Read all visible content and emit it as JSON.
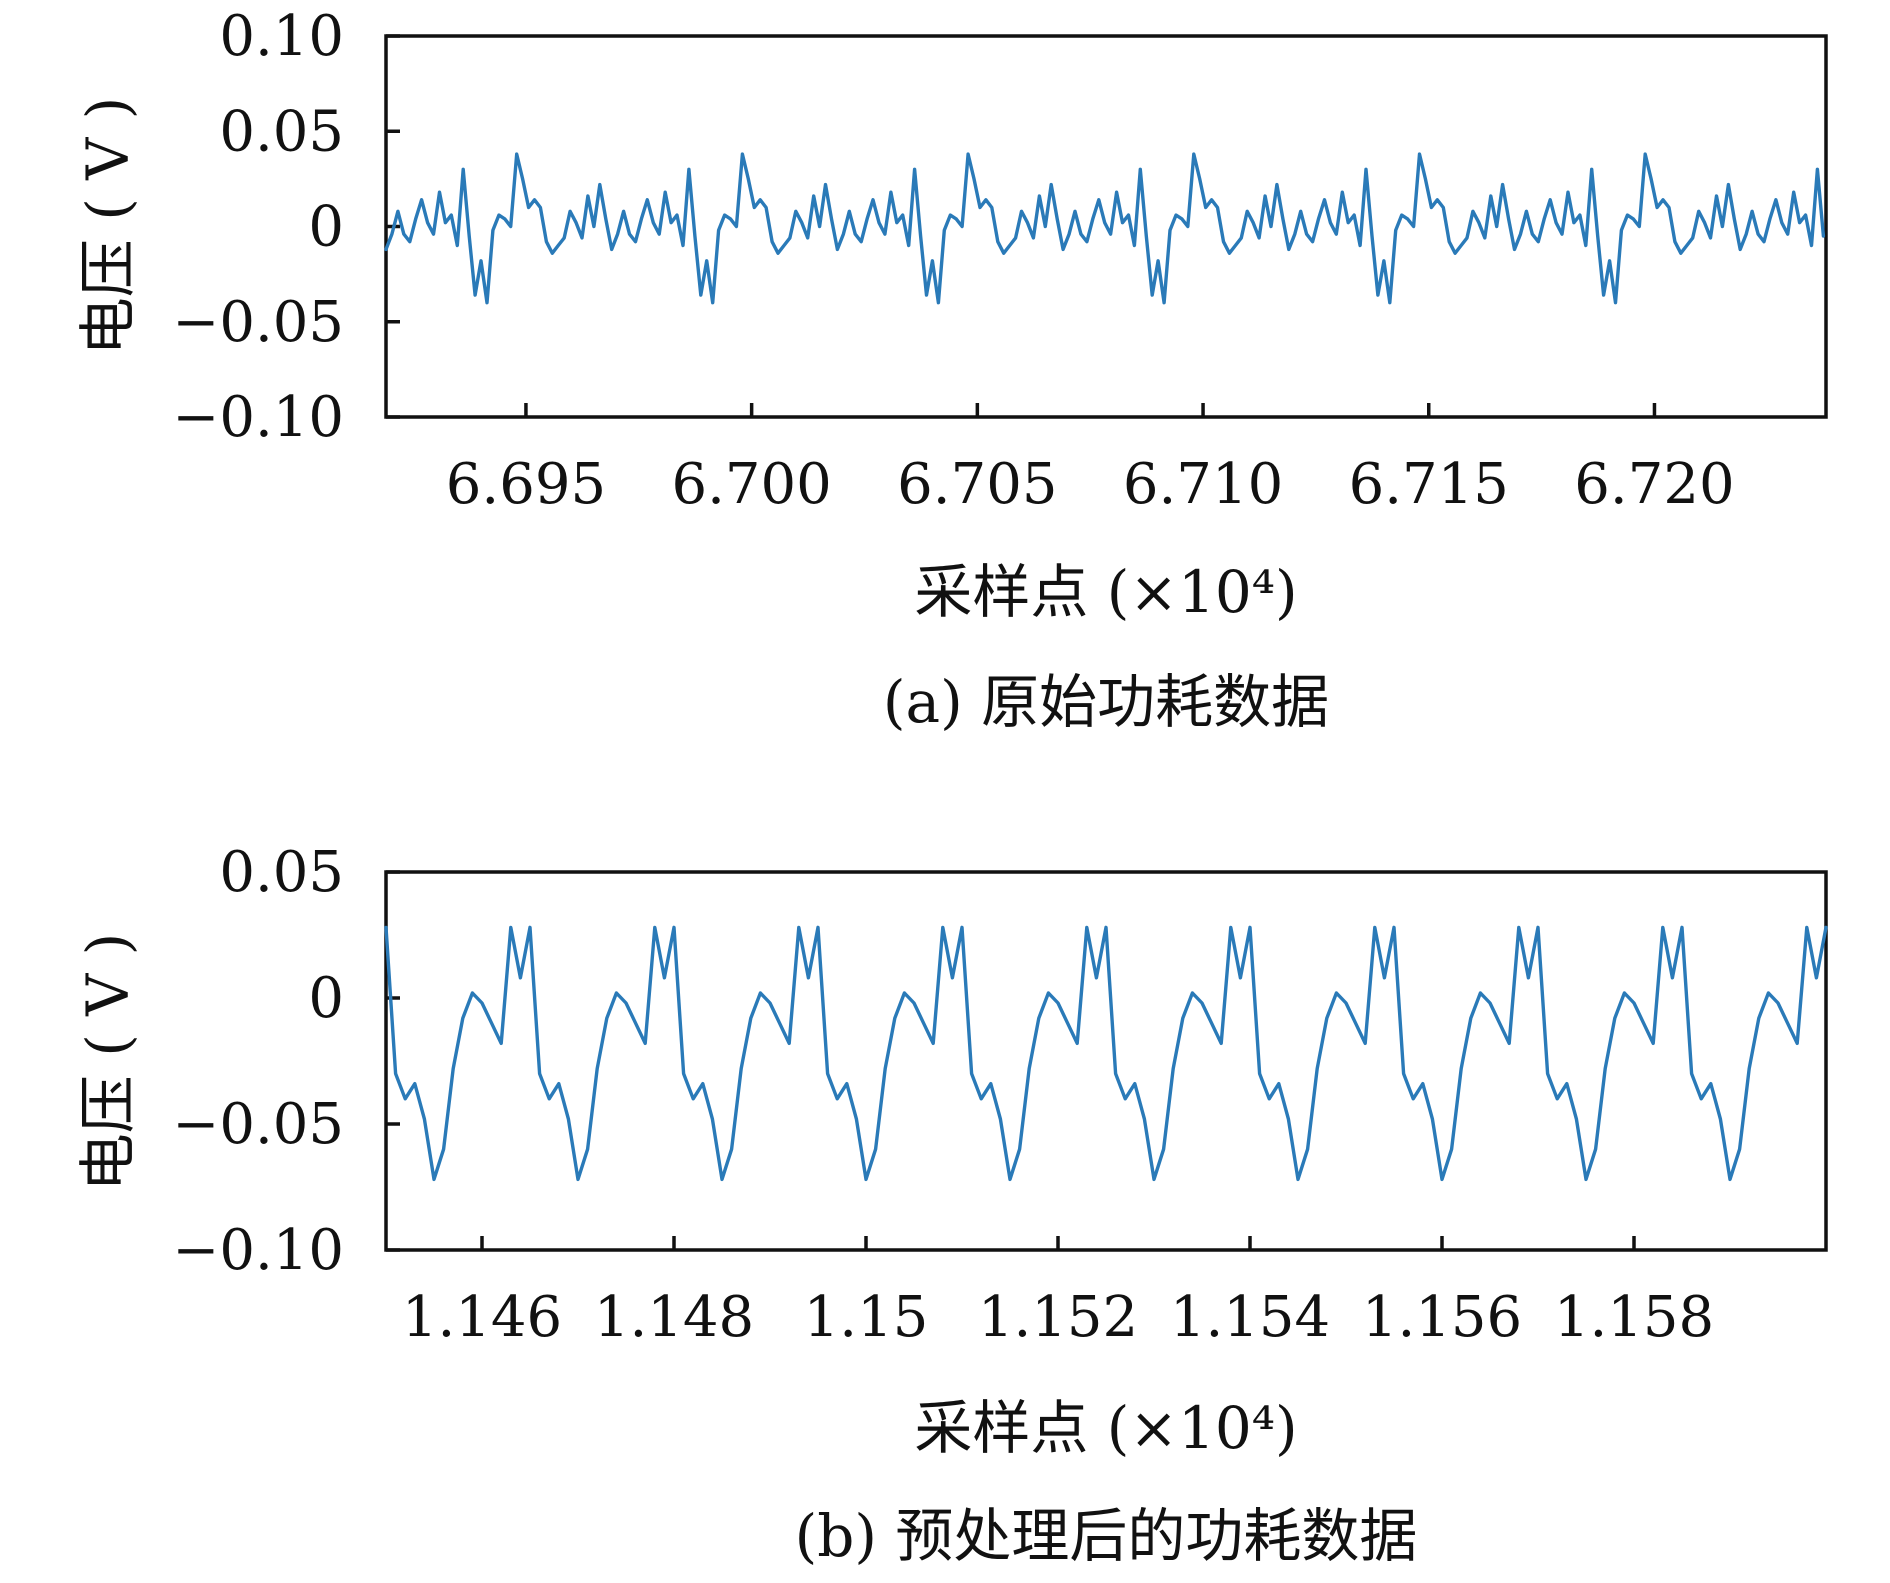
{
  "chart_data": [
    {
      "id": "a",
      "type": "line",
      "caption": "(a) 原始功耗数据",
      "xlabel": "采样点 (×10⁴)",
      "ylabel": "电压 ( V )",
      "xlim": [
        6.6919,
        6.7238
      ],
      "ylim": [
        -0.1,
        0.1
      ],
      "xticks": [
        6.695,
        6.7,
        6.705,
        6.71,
        6.715,
        6.72
      ],
      "xtick_labels": [
        "6.695",
        "6.700",
        "6.705",
        "6.710",
        "6.715",
        "6.720"
      ],
      "yticks": [
        0.1,
        0.05,
        0,
        -0.05,
        -0.1
      ],
      "ytick_labels": [
        "0.10",
        "0.05",
        "0",
        "−0.05",
        "−0.10"
      ],
      "grid": false,
      "series": [
        {
          "color": "#2a7ab8",
          "period_start": 6.6919,
          "period": 0.005,
          "periods": 7,
          "cycle_y": [
            -0.012,
            -0.004,
            0.008,
            -0.004,
            -0.008,
            0.004,
            0.014,
            0.002,
            -0.004,
            0.018,
            0.002,
            0.006,
            -0.01,
            0.03,
            -0.005,
            -0.036,
            -0.018,
            -0.04,
            -0.002,
            0.006,
            0.004,
            0.0,
            0.038,
            0.025,
            0.01,
            0.014,
            0.01,
            -0.008,
            -0.014,
            -0.01,
            -0.006,
            0.008,
            0.002,
            -0.006,
            0.016,
            0.0,
            0.022,
            0.004
          ]
        }
      ]
    },
    {
      "id": "b",
      "type": "line",
      "caption": "(b) 预处理后的功耗数据",
      "xlabel": "采样点 (×10⁴)",
      "ylabel": "电压 ( V )",
      "xlim": [
        1.145,
        1.16
      ],
      "ylim": [
        -0.1,
        0.05
      ],
      "xticks": [
        1.146,
        1.148,
        1.15,
        1.152,
        1.154,
        1.156,
        1.158
      ],
      "xtick_labels": [
        "1.146",
        "1.148",
        "1.15",
        "1.152",
        "1.154",
        "1.156",
        "1.158"
      ],
      "yticks": [
        0.05,
        0,
        -0.05,
        -0.1
      ],
      "ytick_labels": [
        "0.05",
        "0",
        "−0.05",
        "−0.10"
      ],
      "grid": false,
      "series": [
        {
          "color": "#2a7ab8",
          "period_start": 1.145,
          "period": 0.0015,
          "periods": 10,
          "cycle_y": [
            0.028,
            -0.03,
            -0.04,
            -0.034,
            -0.048,
            -0.072,
            -0.06,
            -0.028,
            -0.008,
            0.002,
            -0.002,
            -0.01,
            -0.018,
            0.028,
            0.008
          ]
        }
      ]
    }
  ]
}
